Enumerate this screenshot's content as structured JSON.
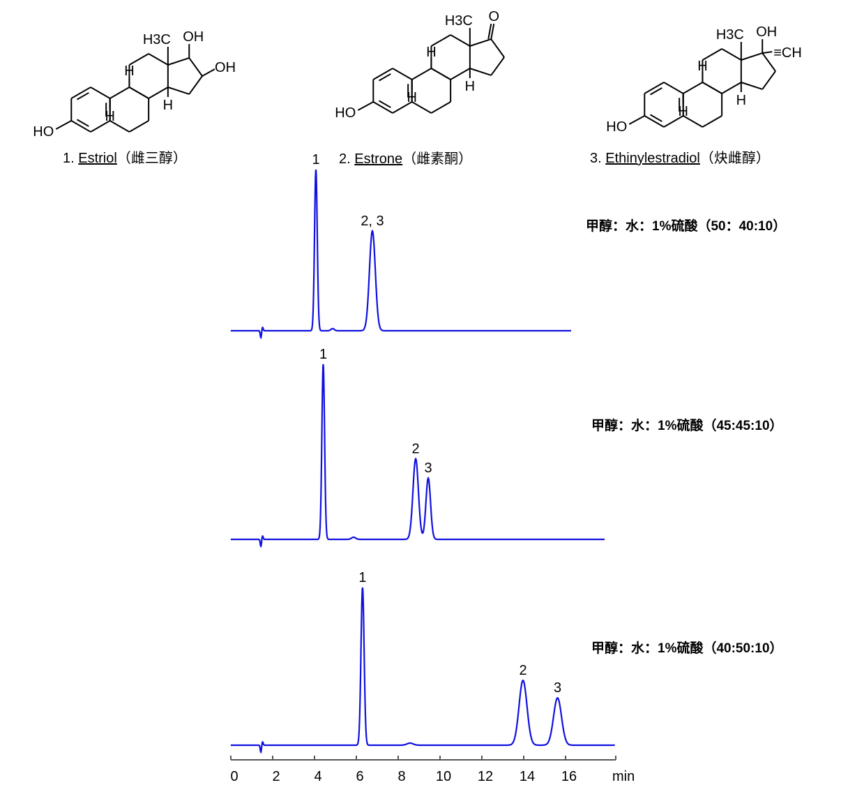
{
  "compounds": [
    {
      "number": "1.",
      "name": "Estriol",
      "cn_name": "（雌三醇）",
      "substituents": {
        "methyl": "H3C",
        "oh17": "OH",
        "oh16": "OH",
        "ho3": "HO",
        "h": "H"
      }
    },
    {
      "number": "2.",
      "name": "Estrone",
      "cn_name": "（雌素酮）",
      "substituents": {
        "methyl": "H3C",
        "keto": "O",
        "ho3": "HO",
        "h": "H"
      }
    },
    {
      "number": "3.",
      "name": "Ethinylestradiol",
      "cn_name": "（炔雌醇）",
      "substituents": {
        "methyl": "H3C",
        "oh17": "OH",
        "ethynyl": "≡CH",
        "ho3": "HO",
        "h": "H"
      }
    }
  ],
  "chart_data": {
    "type": "line",
    "xlabel": "min",
    "xlim": [
      0,
      18
    ],
    "x_ticks": [
      "0",
      "2",
      "4",
      "6",
      "8",
      "10",
      "12",
      "14",
      "16"
    ],
    "y_axis_shown": false,
    "grid": false,
    "series": [
      {
        "condition": "甲醇：水：1%硫酸（50：40:10）",
        "end_time": 16.1,
        "peaks": [
          {
            "label": "1",
            "rt": 3.9,
            "height": 0.92,
            "sigma": 0.065
          },
          {
            "label": "2, 3",
            "rt": 6.6,
            "height": 0.57,
            "sigma": 0.14
          },
          {
            "label": "",
            "rt": 4.7,
            "height": 0.012,
            "sigma": 0.08
          }
        ]
      },
      {
        "condition": "甲醇：水：1%硫酸（45:45:10）",
        "end_time": 17.7,
        "peaks": [
          {
            "label": "1",
            "rt": 4.25,
            "height": 1.0,
            "sigma": 0.065
          },
          {
            "label": "2",
            "rt": 8.67,
            "height": 0.46,
            "sigma": 0.13
          },
          {
            "label": "3",
            "rt": 9.27,
            "height": 0.35,
            "sigma": 0.11
          },
          {
            "label": "",
            "rt": 5.7,
            "height": 0.012,
            "sigma": 0.1
          }
        ]
      },
      {
        "condition": "甲醇：水：1%硫酸（40:50:10）",
        "end_time": 18.2,
        "peaks": [
          {
            "label": "1",
            "rt": 6.13,
            "height": 0.9,
            "sigma": 0.075
          },
          {
            "label": "2",
            "rt": 13.8,
            "height": 0.37,
            "sigma": 0.19
          },
          {
            "label": "3",
            "rt": 15.45,
            "height": 0.27,
            "sigma": 0.19
          },
          {
            "label": "",
            "rt": 8.4,
            "height": 0.012,
            "sigma": 0.15
          }
        ]
      }
    ],
    "injection_time": 1.3,
    "line_color": "#1010e0"
  }
}
